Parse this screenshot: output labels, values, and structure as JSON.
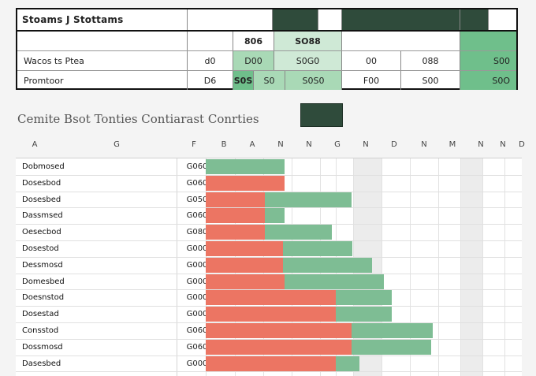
{
  "summary": {
    "title": "Stoams J Stottams",
    "row1": {
      "c2": "806",
      "c3": "SO88"
    },
    "row2": {
      "label": "Wacos ts Ptea",
      "c1": "d0",
      "c2": "D00",
      "c3": "S0G0",
      "c4": "00",
      "c5": "088",
      "c6": "S00"
    },
    "row3": {
      "label": "Promtoor",
      "c1": "D6",
      "c2": "S0S",
      "c2b": "S0",
      "c3": "S0S0",
      "c4": "F00",
      "c5": "S00",
      "c6": "S0O"
    }
  },
  "chart_title": "Cemite Bsot Tonties Contiarast Conrties",
  "col_headers": [
    "A",
    "G",
    "F",
    "B",
    "A",
    "N",
    "N",
    "G",
    "N",
    "D",
    "N",
    "M",
    "N",
    "N",
    "D"
  ],
  "chart_data": {
    "type": "bar",
    "title": "Cemite Bsot Tonties Contiarast Conrties",
    "xlabel": "",
    "ylabel": "",
    "categories": [
      "Dobmosed",
      "Dosesbod",
      "Dosesbed",
      "Dassmsed",
      "Oesecbod",
      "Dosestod",
      "Dessmosd",
      "Domesbed",
      "Doesnstod",
      "Dosestad",
      "Consstod",
      "Dossmosd",
      "Dasesbed"
    ],
    "codes": [
      "G060",
      "G060",
      "G050",
      "G060",
      "G080",
      "G000",
      "G000",
      "G000",
      "G000",
      "G000",
      "G060",
      "G060",
      "G000"
    ],
    "series": [
      {
        "name": "red",
        "color": "#ec7563",
        "values": [
          0,
          10,
          10,
          7.5,
          7.5,
          9.8,
          10,
          10,
          16.5,
          16.5,
          18.5,
          18.5,
          16.5
        ]
      },
      {
        "name": "green",
        "color": "#7ebd94",
        "start": [
          0,
          0,
          7.5,
          7.5,
          7.5,
          9.8,
          9.8,
          10,
          16.5,
          16.5,
          18.5,
          18.5,
          16.5
        ],
        "values": [
          10,
          0,
          11,
          2.5,
          8.5,
          8.8,
          11.2,
          12.5,
          7,
          7,
          10.2,
          10,
          3
        ]
      }
    ],
    "xlim": [
      0,
      40
    ]
  }
}
